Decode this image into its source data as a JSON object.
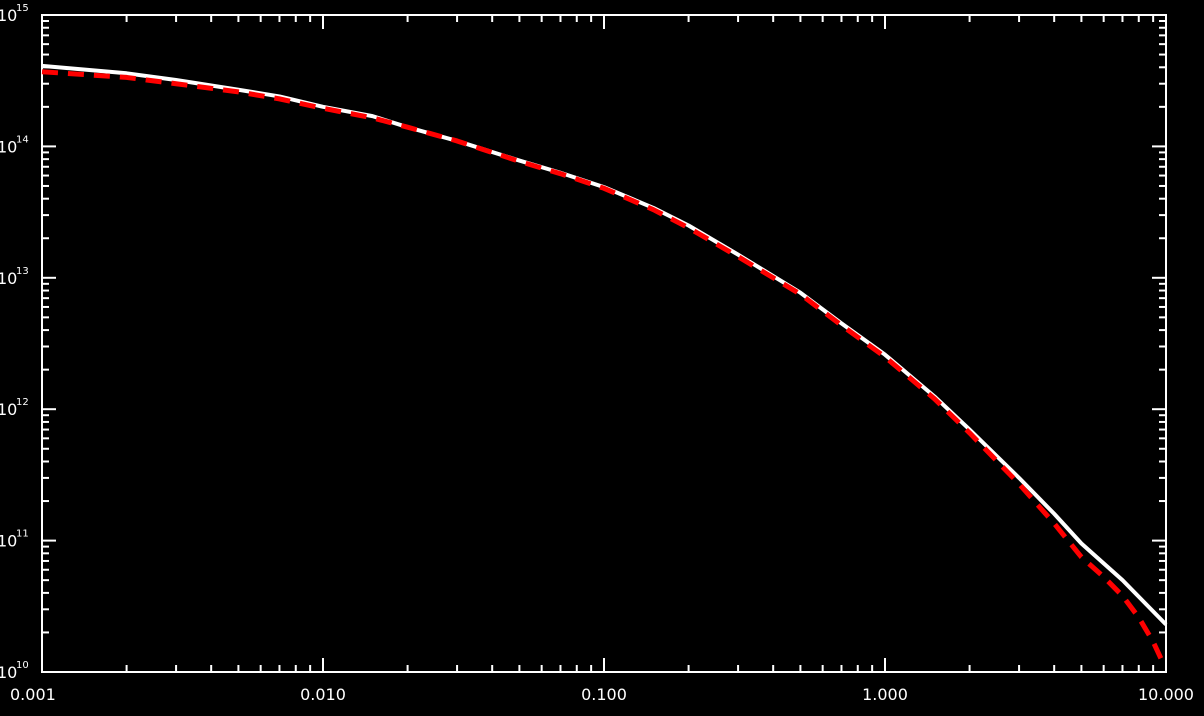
{
  "chart_data": {
    "type": "line",
    "title": "",
    "xlabel": "",
    "ylabel": "",
    "x_scale": "log",
    "y_scale": "log",
    "xlim": [
      0.001,
      10.0
    ],
    "ylim": [
      10000000000.0,
      1000000000000000.0
    ],
    "x_ticks": [
      {
        "value": 0.001,
        "label": "0.001"
      },
      {
        "value": 0.01,
        "label": "0.010"
      },
      {
        "value": 0.1,
        "label": "0.100"
      },
      {
        "value": 1.0,
        "label": "1.000"
      },
      {
        "value": 10.0,
        "label": "10.000"
      }
    ],
    "y_ticks": [
      {
        "value": 10000000000.0,
        "base": "10",
        "exp": "10"
      },
      {
        "value": 100000000000.0,
        "base": "10",
        "exp": "11"
      },
      {
        "value": 1000000000000.0,
        "base": "10",
        "exp": "12"
      },
      {
        "value": 10000000000000.0,
        "base": "10",
        "exp": "13"
      },
      {
        "value": 100000000000000.0,
        "base": "10",
        "exp": "14"
      },
      {
        "value": 1000000000000000.0,
        "base": "10",
        "exp": "15"
      }
    ],
    "grid": false,
    "legend": "none",
    "series": [
      {
        "color": "#ffffff",
        "style": "solid",
        "x": [
          0.001,
          0.002,
          0.003,
          0.005,
          0.007,
          0.01,
          0.015,
          0.02,
          0.03,
          0.05,
          0.07,
          0.1,
          0.15,
          0.2,
          0.3,
          0.5,
          0.7,
          1.0,
          1.5,
          2.0,
          3.0,
          4.0,
          5.0,
          7.0,
          10.0
        ],
        "y": [
          410000000000000.0,
          360000000000000.0,
          320000000000000.0,
          270000000000000.0,
          240000000000000.0,
          200000000000000.0,
          170000000000000.0,
          140000000000000.0,
          110000000000000.0,
          78000000000000.0,
          63000000000000.0,
          49000000000000.0,
          34000000000000.0,
          25000000000000.0,
          15000000000000.0,
          7700000000000.0,
          4500000000000.0,
          2600000000000.0,
          1250000000000.0,
          700000000000.0,
          300000000000.0,
          160000000000.0,
          95000000000.0,
          50000000000.0,
          23000000000.0
        ]
      },
      {
        "color": "#ff0000",
        "style": "dashed",
        "x": [
          0.001,
          0.002,
          0.003,
          0.005,
          0.007,
          0.01,
          0.015,
          0.02,
          0.03,
          0.05,
          0.07,
          0.1,
          0.15,
          0.2,
          0.3,
          0.5,
          0.7,
          1.0,
          1.5,
          2.0,
          3.0,
          4.0,
          5.0,
          6.0,
          7.0,
          8.0,
          9.0,
          9.8
        ],
        "y": [
          370000000000000.0,
          335000000000000.0,
          300000000000000.0,
          260000000000000.0,
          230000000000000.0,
          195000000000000.0,
          165000000000000.0,
          140000000000000.0,
          110000000000000.0,
          77000000000000.0,
          62000000000000.0,
          48000000000000.0,
          33000000000000.0,
          24000000000000.0,
          14500000000000.0,
          7500000000000.0,
          4350000000000.0,
          2500000000000.0,
          1200000000000.0,
          660000000000.0,
          270000000000.0,
          135000000000.0,
          75000000000.0,
          53000000000.0,
          38000000000.0,
          26000000000.0,
          17000000000.0,
          11500000000.0
        ]
      }
    ]
  }
}
